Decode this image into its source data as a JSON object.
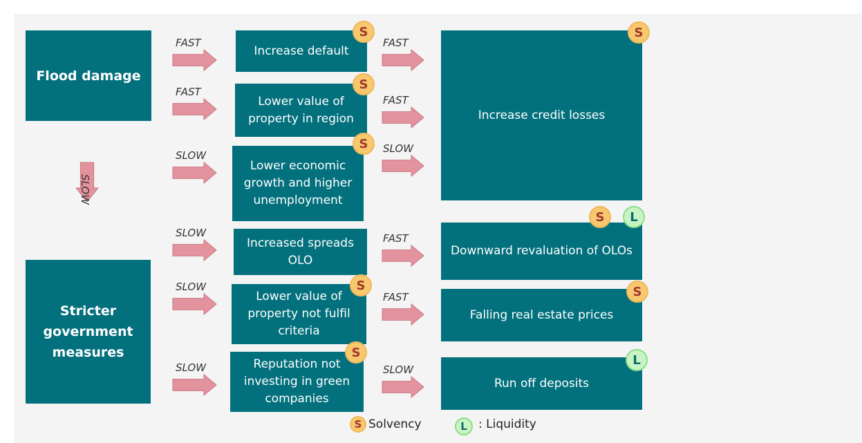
{
  "sources": [
    "Flood damage",
    "Stricter government measures"
  ],
  "effects": [
    "Increase default",
    "Lower value of property in region",
    "Lower economic growth and higher unemployment",
    "Increased spreads OLO",
    "Lower value of property not fulfil criteria",
    "Reputation not investing in green companies"
  ],
  "outcomes": [
    "Increase credit losses",
    "Downward revaluation of OLOs",
    "Falling real estate prices",
    "Run off deposits"
  ],
  "arrows_left": [
    "FAST",
    "FAST",
    "SLOW",
    "SLOW",
    "SLOW",
    "SLOW"
  ],
  "arrows_right": [
    "FAST",
    "FAST",
    "SLOW",
    "FAST",
    "FAST",
    "SLOW"
  ],
  "down_arrow": "SLOW",
  "badges": [
    "S",
    "S",
    "S",
    "S",
    "L",
    "S",
    "S",
    "S",
    "S",
    "L"
  ],
  "legend": {
    "solvency_badge": "S",
    "solvency": "Solvency",
    "liquidity_badge": "L",
    "liquidity": ": Liquidity"
  }
}
